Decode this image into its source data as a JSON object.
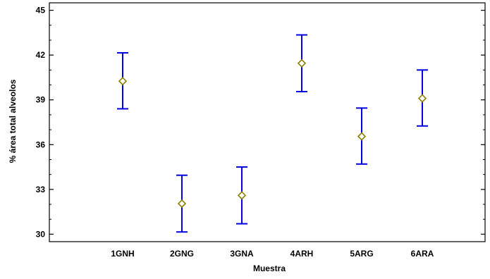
{
  "chart_data": {
    "type": "scatter",
    "title": "",
    "xlabel": "Muestra",
    "ylabel": "% área total alveolos",
    "ylim": [
      29.5,
      45.5
    ],
    "yticks": [
      30,
      33,
      36,
      39,
      42,
      45
    ],
    "yticks_minor": [
      31,
      32,
      34,
      35,
      37,
      38,
      40,
      41,
      43,
      44
    ],
    "ytick_labels": [
      "30",
      "33",
      "36",
      "39",
      "42",
      "45"
    ],
    "categories": [
      "1GNH",
      "2GNG",
      "3GNA",
      "4ARH",
      "5ARG",
      "6ARA"
    ],
    "means": [
      40.25,
      32.05,
      32.6,
      41.45,
      36.55,
      39.1
    ],
    "lower": [
      38.4,
      30.15,
      30.7,
      39.55,
      34.7,
      37.25
    ],
    "upper": [
      42.15,
      33.95,
      34.5,
      43.35,
      38.45,
      41.0
    ],
    "grid": false,
    "legend": "none",
    "colors": {
      "error_bar": "#0000e0",
      "marker": "#8b8000",
      "axis": "#000000"
    },
    "marker_shape": "diamond-icon"
  }
}
